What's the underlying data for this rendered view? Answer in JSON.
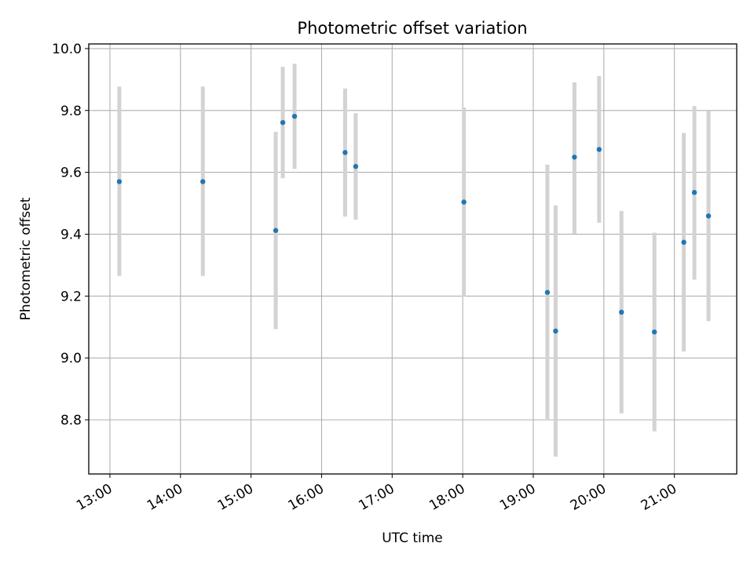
{
  "chart_data": {
    "type": "scatter",
    "title": "Photometric offset variation",
    "xlabel": "UTC time",
    "ylabel": "Photometric offset",
    "x_tick_labels": [
      "13:00",
      "14:00",
      "15:00",
      "16:00",
      "17:00",
      "18:00",
      "19:00",
      "20:00",
      "21:00"
    ],
    "y_tick_labels": [
      "8.8",
      "9.0",
      "9.2",
      "9.4",
      "9.6",
      "9.8",
      "10.0"
    ],
    "xlim": [
      "12:42",
      "21:53"
    ],
    "ylim": [
      8.625,
      10.015
    ],
    "grid": true,
    "point_color": "#1f77b4",
    "errorbar_color": "#d3d3d3",
    "series": [
      {
        "points": [
          {
            "x": "13:08",
            "y": 9.57,
            "yerr_low": 9.265,
            "yerr_high": 9.877
          },
          {
            "x": "14:19",
            "y": 9.57,
            "yerr_low": 9.265,
            "yerr_high": 9.877
          },
          {
            "x": "15:21",
            "y": 9.412,
            "yerr_low": 9.093,
            "yerr_high": 9.731
          },
          {
            "x": "15:27",
            "y": 9.761,
            "yerr_low": 9.581,
            "yerr_high": 9.941
          },
          {
            "x": "15:37",
            "y": 9.781,
            "yerr_low": 9.611,
            "yerr_high": 9.951
          },
          {
            "x": "16:20",
            "y": 9.664,
            "yerr_low": 9.457,
            "yerr_high": 9.871
          },
          {
            "x": "16:29",
            "y": 9.619,
            "yerr_low": 9.447,
            "yerr_high": 9.791
          },
          {
            "x": "18:01",
            "y": 9.504,
            "yerr_low": 9.198,
            "yerr_high": 9.81
          },
          {
            "x": "19:12",
            "y": 9.212,
            "yerr_low": 8.8,
            "yerr_high": 9.625
          },
          {
            "x": "19:19",
            "y": 9.087,
            "yerr_low": 8.681,
            "yerr_high": 9.493
          },
          {
            "x": "19:35",
            "y": 9.649,
            "yerr_low": 9.401,
            "yerr_high": 9.891
          },
          {
            "x": "19:56",
            "y": 9.674,
            "yerr_low": 9.437,
            "yerr_high": 9.911
          },
          {
            "x": "20:15",
            "y": 9.148,
            "yerr_low": 8.821,
            "yerr_high": 9.475
          },
          {
            "x": "20:43",
            "y": 9.084,
            "yerr_low": 8.763,
            "yerr_high": 9.405
          },
          {
            "x": "21:08",
            "y": 9.374,
            "yerr_low": 9.021,
            "yerr_high": 9.727
          },
          {
            "x": "21:17",
            "y": 9.535,
            "yerr_low": 9.253,
            "yerr_high": 9.814
          },
          {
            "x": "21:29",
            "y": 9.459,
            "yerr_low": 9.119,
            "yerr_high": 9.799
          }
        ]
      }
    ]
  }
}
